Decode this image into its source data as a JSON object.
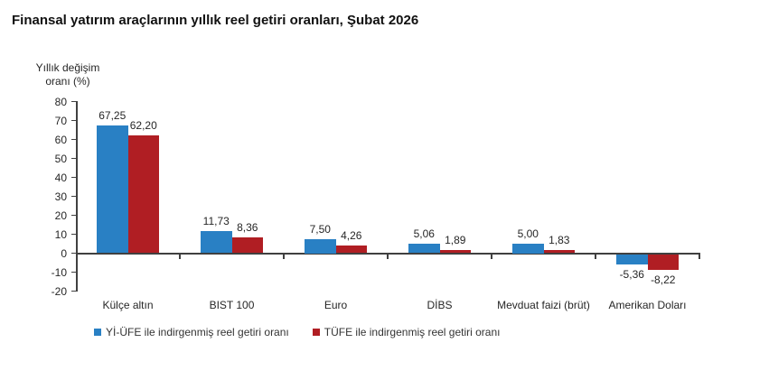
{
  "chart_data": {
    "type": "bar",
    "title": "Finansal yatırım araçlarının yıllık reel getiri oranları, Şubat 2026",
    "y_axis_title_lines": [
      "Yıllık değişim",
      "oranı (%)"
    ],
    "categories": [
      "Külçe altın",
      "BIST 100",
      "Euro",
      "DİBS",
      "Mevduat faizi (brüt)",
      "Amerikan Doları"
    ],
    "series": [
      {
        "name": "Yİ-ÜFE ile indirgenmiş reel getiri oranı",
        "color": "#2980C4",
        "values": [
          67.25,
          11.73,
          7.5,
          5.06,
          5.0,
          -5.36
        ],
        "labels": [
          "67,25",
          "11,73",
          "7,50",
          "5,06",
          "5,00",
          "-5,36"
        ]
      },
      {
        "name": "TÜFE ile indirgenmiş reel getiri oranı",
        "color": "#B01E23",
        "values": [
          62.2,
          8.36,
          4.26,
          1.89,
          1.83,
          -8.22
        ],
        "labels": [
          "62,20",
          "8,36",
          "4,26",
          "1,89",
          "1,83",
          "-8,22"
        ]
      }
    ],
    "ylim": [
      -20,
      80
    ],
    "y_ticks": [
      80,
      70,
      60,
      50,
      40,
      30,
      20,
      10,
      0,
      -10,
      -20
    ],
    "grid": false,
    "legend_position": "bottom",
    "axis_color": "#404040"
  }
}
